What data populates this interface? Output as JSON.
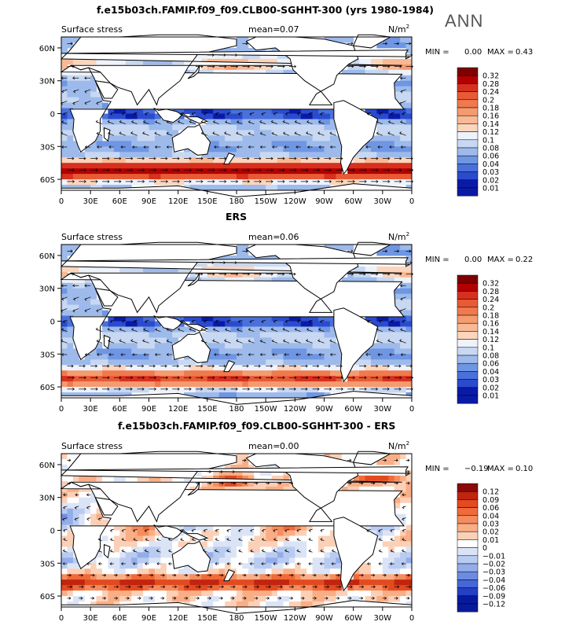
{
  "header": {
    "top_title": "f.e15b03ch.FAMIP.f09_f09.CLB00-SGHHT-300 (yrs 1980-1984)",
    "season": "ANN"
  },
  "panels": [
    {
      "title": "f.e15b03ch.FAMIP.f09_f09.CLB00-SGHHT-300 (yrs 1980-1984)",
      "variable": "Surface stress",
      "mean_label": "mean=",
      "mean_value": "0.07",
      "units": "N/m",
      "units_sup": "2",
      "min_label": "MIN =",
      "min_value": "0.00",
      "max_label": "MAX =",
      "max_value": "0.43",
      "colorbar": [
        "0.32",
        "0.28",
        "0.24",
        "0.2",
        "0.18",
        "0.16",
        "0.14",
        "0.12",
        "0.1",
        "0.08",
        "0.06",
        "0.04",
        "0.03",
        "0.02",
        "0.01"
      ]
    },
    {
      "title": "ERS",
      "variable": "Surface stress",
      "mean_label": "mean=",
      "mean_value": "0.06",
      "units": "N/m",
      "units_sup": "2",
      "min_label": "MIN =",
      "min_value": "0.00",
      "max_label": "MAX =",
      "max_value": "0.22",
      "colorbar": [
        "0.32",
        "0.28",
        "0.24",
        "0.2",
        "0.18",
        "0.16",
        "0.14",
        "0.12",
        "0.1",
        "0.08",
        "0.06",
        "0.04",
        "0.03",
        "0.02",
        "0.01"
      ]
    },
    {
      "title": "f.e15b03ch.FAMIP.f09_f09.CLB00-SGHHT-300 - ERS",
      "variable": "Surface stress",
      "mean_label": "mean=",
      "mean_value": "0.00",
      "units": "N/m",
      "units_sup": "2",
      "min_label": "MIN =",
      "min_value": "−0.19",
      "max_label": "MAX =",
      "max_value": "0.10",
      "colorbar": [
        "0.12",
        "0.09",
        "0.06",
        "0.04",
        "0.03",
        "0.02",
        "0.01",
        "0",
        "−0.01",
        "−0.02",
        "−0.03",
        "−0.04",
        "−0.06",
        "−0.09",
        "−0.12"
      ]
    }
  ],
  "chart_data": [
    {
      "type": "heatmap",
      "title": "f.e15b03ch.FAMIP.f09_f09.CLB00-SGHHT-300 (yrs 1980-1984)",
      "variable": "Surface stress",
      "units": "N/m2",
      "mean": 0.07,
      "min": 0.0,
      "max": 0.43,
      "x_ticks": [
        "0",
        "30E",
        "60E",
        "90E",
        "120E",
        "150E",
        "180",
        "150W",
        "120W",
        "90W",
        "60W",
        "30W",
        "0"
      ],
      "y_ticks": [
        "60N",
        "30N",
        "0",
        "30S",
        "60S"
      ],
      "xlim": [
        0,
        360
      ],
      "ylim": [
        -70,
        70
      ],
      "levels": [
        0.01,
        0.02,
        0.03,
        0.04,
        0.06,
        0.08,
        0.1,
        0.12,
        0.14,
        0.16,
        0.18,
        0.2,
        0.24,
        0.28,
        0.32
      ],
      "overlay": "wind stress vectors"
    },
    {
      "type": "heatmap",
      "title": "ERS",
      "variable": "Surface stress",
      "units": "N/m2",
      "mean": 0.06,
      "min": 0.0,
      "max": 0.22,
      "x_ticks": [
        "0",
        "30E",
        "60E",
        "90E",
        "120E",
        "150E",
        "180",
        "150W",
        "120W",
        "90W",
        "60W",
        "30W",
        "0"
      ],
      "y_ticks": [
        "60N",
        "30N",
        "0",
        "30S",
        "60S"
      ],
      "xlim": [
        0,
        360
      ],
      "ylim": [
        -70,
        70
      ],
      "levels": [
        0.01,
        0.02,
        0.03,
        0.04,
        0.06,
        0.08,
        0.1,
        0.12,
        0.14,
        0.16,
        0.18,
        0.2,
        0.24,
        0.28,
        0.32
      ],
      "overlay": "wind stress vectors"
    },
    {
      "type": "heatmap",
      "title": "f.e15b03ch.FAMIP.f09_f09.CLB00-SGHHT-300 - ERS",
      "variable": "Surface stress",
      "units": "N/m2",
      "mean": 0.0,
      "min": -0.19,
      "max": 0.1,
      "x_ticks": [
        "0",
        "30E",
        "60E",
        "90E",
        "120E",
        "150E",
        "180",
        "150W",
        "120W",
        "90W",
        "60W",
        "30W",
        "0"
      ],
      "y_ticks": [
        "60N",
        "30N",
        "0",
        "30S",
        "60S"
      ],
      "xlim": [
        0,
        360
      ],
      "ylim": [
        -70,
        70
      ],
      "levels": [
        -0.12,
        -0.09,
        -0.06,
        -0.04,
        -0.03,
        -0.02,
        -0.01,
        0,
        0.01,
        0.02,
        0.03,
        0.04,
        0.06,
        0.09,
        0.12
      ],
      "overlay": "wind stress difference vectors"
    }
  ],
  "axes": {
    "x_ticks": [
      "0",
      "30E",
      "60E",
      "90E",
      "120E",
      "150E",
      "180",
      "150W",
      "120W",
      "90W",
      "60W",
      "30W",
      "0"
    ],
    "y_ticks": [
      "60N",
      "30N",
      "0",
      "30S",
      "60S"
    ]
  },
  "colors": {
    "abs_scale": [
      "#7f0000",
      "#b30000",
      "#d7301f",
      "#e85a35",
      "#f07a4d",
      "#f59b70",
      "#f9b994",
      "#fcd5bd",
      "#eef2fb",
      "#c8d8f2",
      "#9dbaeb",
      "#6f96e3",
      "#4a70db",
      "#2b4bcf",
      "#0a1aa8"
    ],
    "diff_scale": [
      "#8a0a0a",
      "#c0250f",
      "#e34a1f",
      "#f06a3a",
      "#f58c5e",
      "#f9ae86",
      "#fcd0b6",
      "#ffffff",
      "#dbe4f7",
      "#b9cbf0",
      "#93adea",
      "#6c8ce2",
      "#4567d8",
      "#2440c6",
      "#071a9e"
    ]
  }
}
